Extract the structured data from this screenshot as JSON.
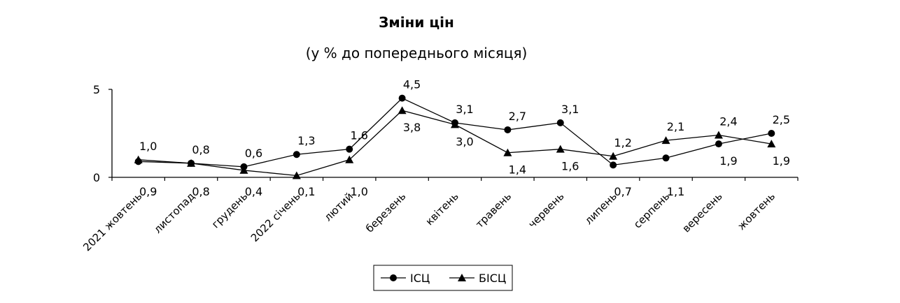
{
  "chart_data": {
    "type": "line",
    "title": "Зміни цін",
    "subtitle": "(у % до попереднього місяця)",
    "categories": [
      "2021 жовтень",
      "листопад",
      "грудень",
      "2022 січень",
      "лютий",
      "березень",
      "квітень",
      "травень",
      "червень",
      "липень",
      "серпень",
      "вересень",
      "жовтень"
    ],
    "series": [
      {
        "name": "ІСЦ",
        "marker": "circle",
        "values": [
          0.9,
          0.8,
          0.6,
          1.3,
          1.6,
          4.5,
          3.1,
          2.7,
          3.1,
          0.7,
          1.1,
          1.9,
          2.5
        ],
        "labels": [
          "0,9",
          "0,8",
          "0,6",
          "1,3",
          "1,6",
          "4,5",
          "3,1",
          "2,7",
          "3,1",
          "0,7",
          "1,1",
          "1,9",
          "2,5"
        ]
      },
      {
        "name": "БІСЦ",
        "marker": "triangle",
        "values": [
          1.0,
          0.8,
          0.4,
          0.1,
          1.0,
          3.8,
          3.0,
          1.4,
          1.6,
          1.2,
          2.1,
          2.4,
          1.9
        ],
        "labels": [
          "1,0",
          "0,8",
          "0,4",
          "0,1",
          "1,0",
          "3,8",
          "3,0",
          "1,4",
          "1,6",
          "1,2",
          "2,1",
          "2,4",
          "1,9"
        ]
      }
    ],
    "yticks": [
      "0",
      "5"
    ],
    "ylim": [
      0,
      5
    ],
    "grid": false,
    "legend_position": "bottom-center",
    "colors": {
      "line": "#000000",
      "background": "#ffffff"
    }
  }
}
